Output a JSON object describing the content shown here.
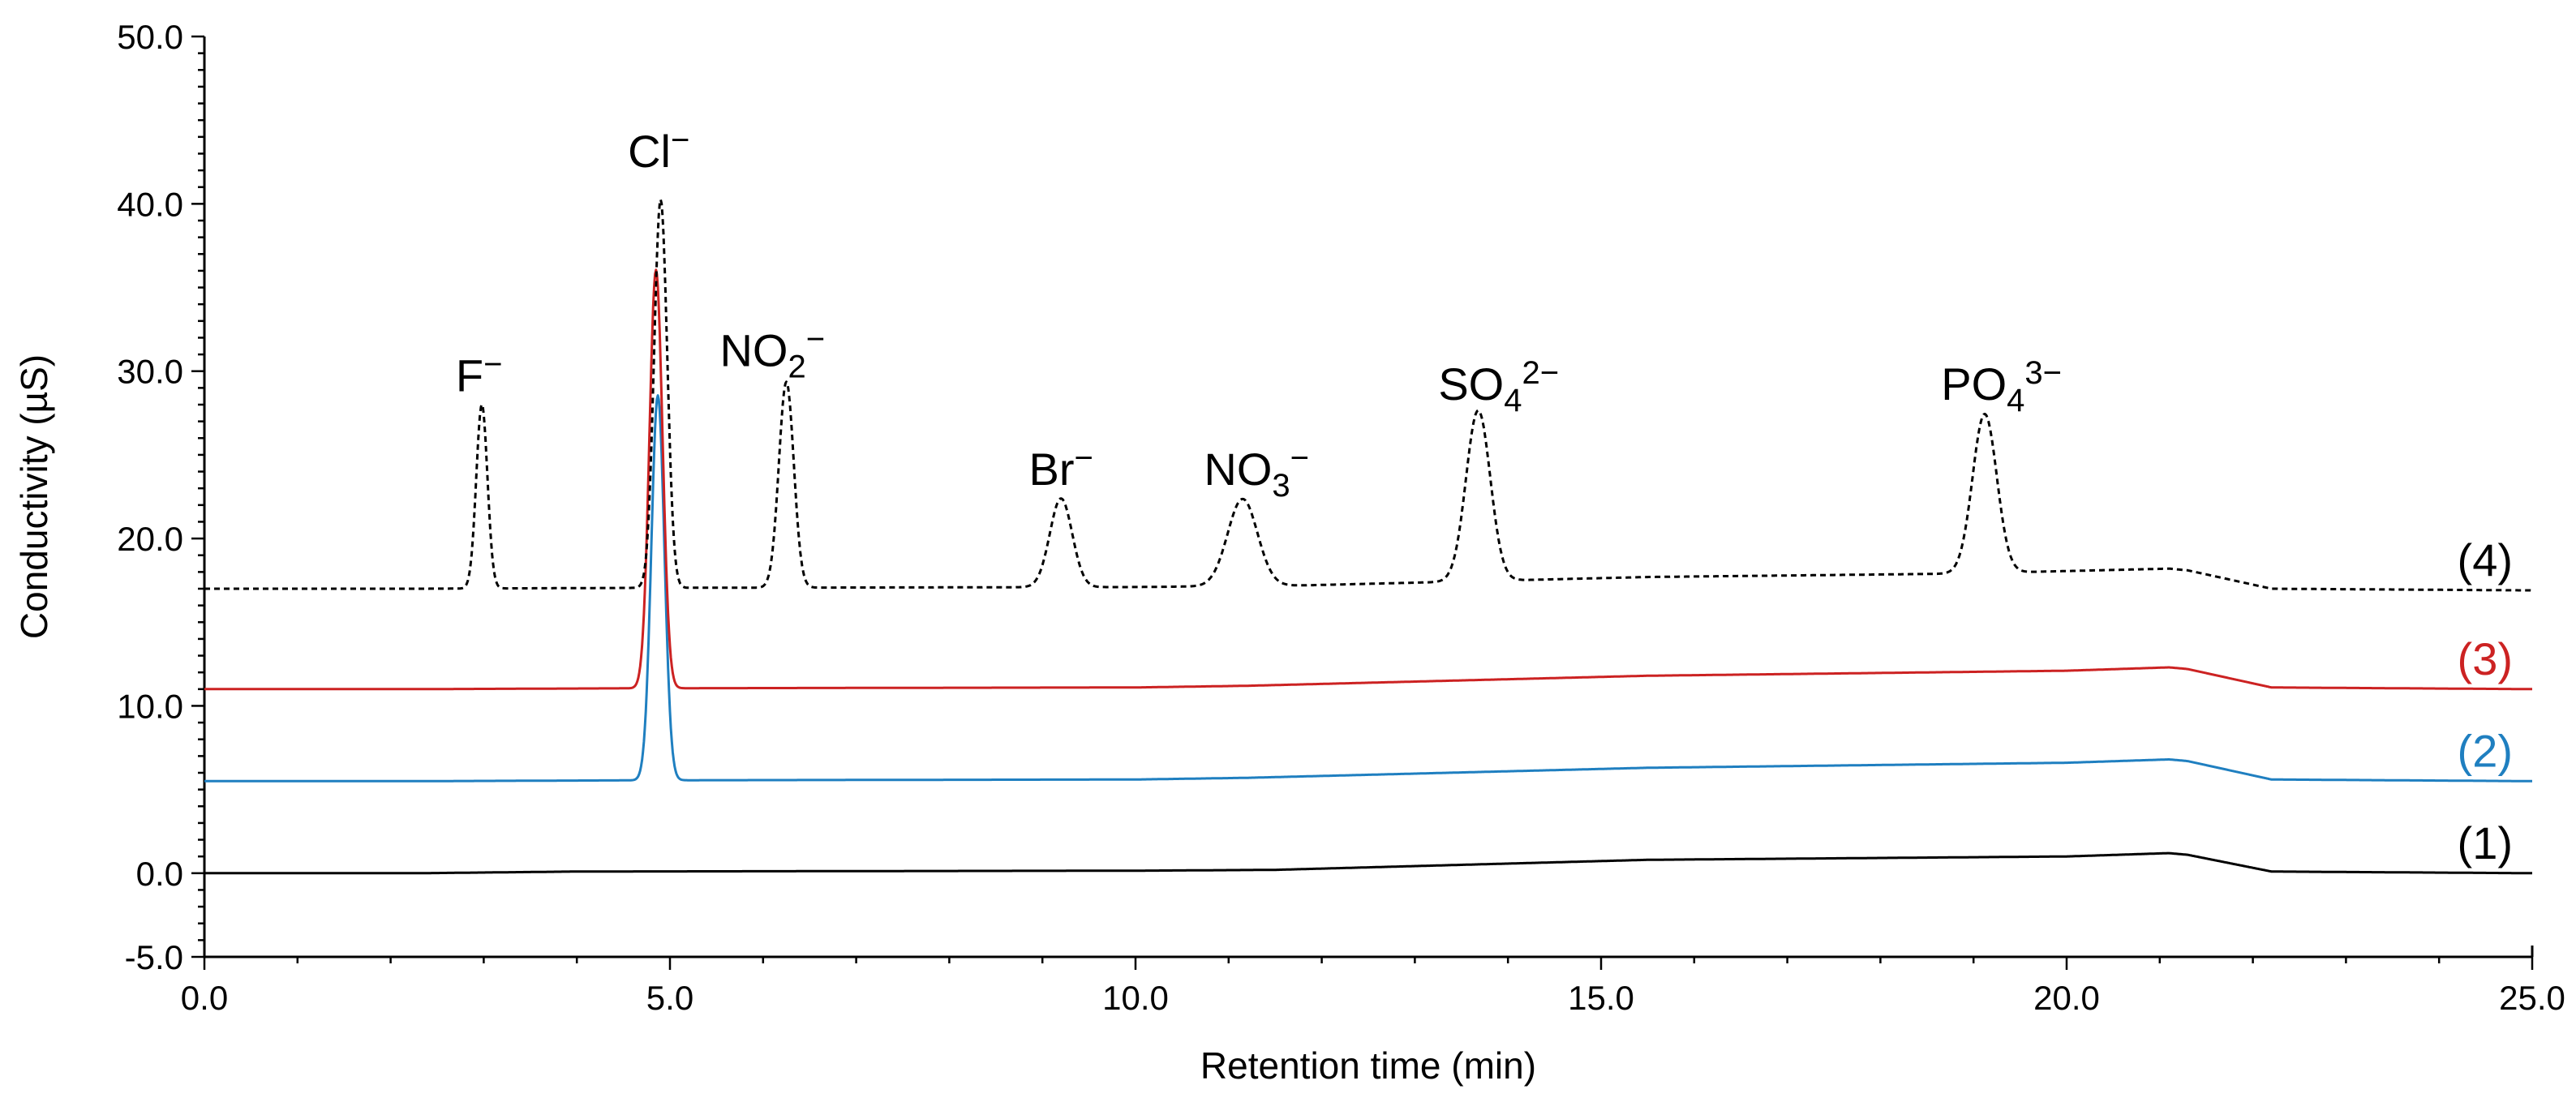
{
  "chart_data": {
    "type": "line",
    "title": "",
    "xlabel": "Retention time (min)",
    "ylabel": "Conductivity (µS)",
    "xlim": [
      0,
      25
    ],
    "ylim": [
      -5,
      50
    ],
    "x_ticks": [
      "0.0",
      "5.0",
      "10.0",
      "15.0",
      "20.0",
      "25.0"
    ],
    "y_ticks": [
      "-5.0",
      "0.0",
      "10.0",
      "20.0",
      "30.0",
      "40.0",
      "50.0"
    ],
    "grid": false,
    "series": [
      {
        "name": "(1)",
        "color": "#000000",
        "dash": false,
        "baseline": [
          [
            0,
            0
          ],
          [
            2.3,
            0
          ],
          [
            4,
            0.1
          ],
          [
            10,
            0.15
          ],
          [
            11.5,
            0.2
          ],
          [
            15.5,
            0.8
          ],
          [
            20,
            1.0
          ],
          [
            21.1,
            1.2
          ],
          [
            21.3,
            1.1
          ],
          [
            22.2,
            0.1
          ],
          [
            25,
            0
          ]
        ],
        "peaks": []
      },
      {
        "name": "(2)",
        "color": "#1f7fc0",
        "dash": false,
        "baseline": [
          [
            0,
            5.5
          ],
          [
            2.3,
            5.5
          ],
          [
            4.6,
            5.55
          ],
          [
            10,
            5.6
          ],
          [
            11.2,
            5.7
          ],
          [
            15.5,
            6.3
          ],
          [
            20,
            6.6
          ],
          [
            21.1,
            6.8
          ],
          [
            21.3,
            6.7
          ],
          [
            22.2,
            5.6
          ],
          [
            25,
            5.5
          ]
        ],
        "peaks": [
          [
            4.87,
            23.0,
            0.07
          ]
        ]
      },
      {
        "name": "(3)",
        "color": "#cc2222",
        "dash": false,
        "baseline": [
          [
            0,
            11.0
          ],
          [
            2.3,
            11.0
          ],
          [
            4.6,
            11.05
          ],
          [
            10,
            11.1
          ],
          [
            11.2,
            11.2
          ],
          [
            15.5,
            11.8
          ],
          [
            20,
            12.1
          ],
          [
            21.1,
            12.3
          ],
          [
            21.3,
            12.2
          ],
          [
            22.2,
            11.1
          ],
          [
            25,
            11.0
          ]
        ],
        "peaks": [
          [
            4.85,
            25.0,
            0.07
          ]
        ]
      },
      {
        "name": "(4)",
        "color": "#000000",
        "dash": true,
        "baseline": [
          [
            0,
            17.0
          ],
          [
            2.3,
            17.0
          ],
          [
            4.6,
            17.05
          ],
          [
            10,
            17.1
          ],
          [
            11.8,
            17.2
          ],
          [
            15.5,
            17.7
          ],
          [
            18.8,
            17.9
          ],
          [
            21.1,
            18.2
          ],
          [
            21.3,
            18.1
          ],
          [
            22.2,
            17.0
          ],
          [
            25,
            16.9
          ]
        ],
        "peaks": [
          [
            2.98,
            11.0,
            0.06
          ],
          [
            4.9,
            23.2,
            0.07
          ],
          [
            6.25,
            12.3,
            0.08
          ],
          [
            9.2,
            5.3,
            0.12
          ],
          [
            11.15,
            5.2,
            0.16
          ],
          [
            13.68,
            10.2,
            0.13
          ],
          [
            19.12,
            9.5,
            0.13
          ]
        ]
      }
    ],
    "peak_labels": [
      {
        "ion": "F",
        "sub": "",
        "sup": "−",
        "x": 2.95,
        "y": 28.8
      },
      {
        "ion": "Cl",
        "sub": "",
        "sup": "−",
        "x": 4.88,
        "y": 42.2
      },
      {
        "ion": "NO",
        "sub": "2",
        "sup": "−",
        "x": 6.1,
        "y": 30.3
      },
      {
        "ion": "Br",
        "sub": "",
        "sup": "−",
        "x": 9.2,
        "y": 23.2
      },
      {
        "ion": "NO",
        "sub": "3",
        "sup": "−",
        "x": 11.3,
        "y": 23.2
      },
      {
        "ion": "SO",
        "sub": "4",
        "sup": "2−",
        "x": 13.9,
        "y": 28.3
      },
      {
        "ion": "PO",
        "sub": "4",
        "sup": "3−",
        "x": 19.3,
        "y": 28.3
      }
    ]
  }
}
